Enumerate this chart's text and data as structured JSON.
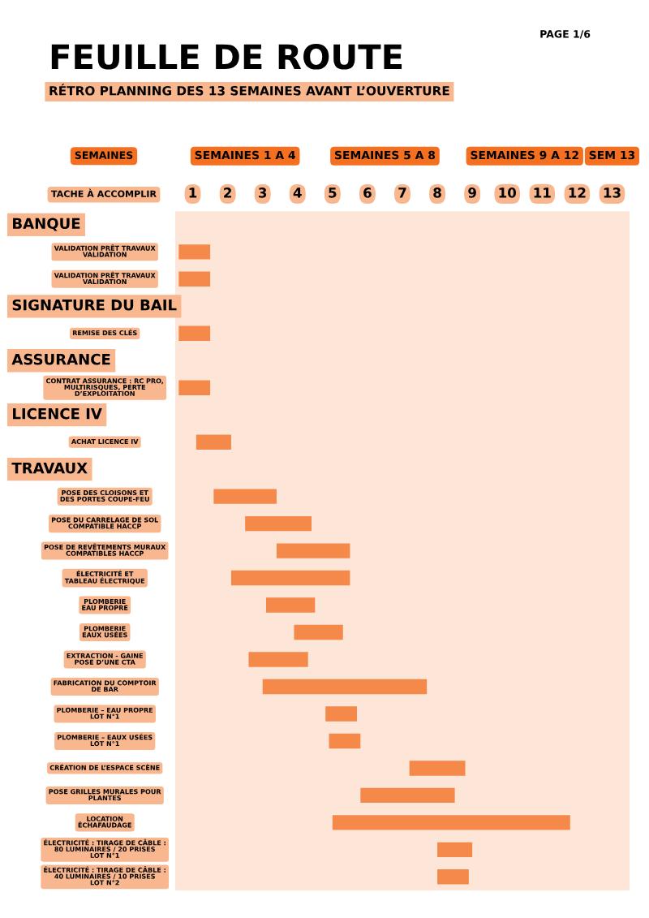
{
  "chart_data": {
    "type": "bar",
    "orientation": "horizontal",
    "title": "FEUILLE DE ROUTE",
    "subtitle": "RÉTRO PLANNING DES 13 SEMAINES AVANT L’OUVERTURE",
    "xlabel": "TACHE À ACCOMPLIR",
    "x2label": "SEMAINES",
    "annotations": [
      "PAGE 1/6",
      "SEMAINES 1 A 4",
      "SEMAINES 5 A 8",
      "SEMAINES 9 A 12",
      "SEM 13",
      "BANQUE",
      "SIGNATURE DU BAIL",
      "ASSURANCE",
      "LICENCE IV",
      "TRAVAUX"
    ],
    "categories": [
      null,
      "VALIDATION PRÊT TRAVAUX\nVALIDATION",
      "VALIDATION PRÊT TRAVAUX\nVALIDATION",
      null,
      "REMISE DES CLÉS",
      null,
      "CONTRAT ASSURANCE : RC PRO,\nMULTIRISQUES, PERTE\nD’EXPLOITATION",
      null,
      "ACHAT LICENCE IV",
      null,
      "POSE DES CLOISONS ET\nDES PORTES COUPE-FEU",
      "POSE DU CARRELAGE DE SOL\nCOMPATIBLE HACCP",
      "POSE DE REVÊTEMENTS MURAUX\nCOMPATIBLES HACCP",
      "ÉLECTRICITÉ ET\nTABLEAU ÉLECTRIQUE",
      "PLOMBERIE\nEAU PROPRE",
      "PLOMBERIE\nEAUX USÉES",
      "EXTRACTION - GAINE\nPOSE D’UNE CTA",
      "FABRICATION DU COMPTOIR\nDE BAR",
      "PLOMBERIE – EAU PROPRE\nLOT N°1",
      "PLOMBERIE – EAUX USÉES\nLOT N°1",
      "CRÉATION DE L’ESPACE SCÈNE",
      "POSE GRILLES MURALES POUR\nPLANTES",
      "LOCATION\nÉCHAFAUDAGE",
      "ÉLECTRICITÉ : TIRAGE DE CÂBLE :\n80 LUMINAIRES / 20 PRISES\nLOT N°1",
      "ÉLECTRICITÉ : TIRAGE DE CÂBLE :\n40 LUMINAIRES / 10 PRISES\nLOT N°2"
    ],
    "base": [
      null,
      0.6,
      0.6,
      null,
      0.6,
      null,
      0.6,
      null,
      1.1,
      null,
      1.6,
      2.5,
      3.4,
      2.1,
      3.1,
      3.9,
      2.6,
      3.0,
      4.8,
      4.9,
      7.2,
      5.8,
      5.0,
      8.0,
      8.0
    ],
    "values": [
      null,
      0.9,
      0.9,
      null,
      0.9,
      null,
      0.9,
      null,
      1.0,
      null,
      1.8,
      1.9,
      2.1,
      3.4,
      1.4,
      1.4,
      1.7,
      4.7,
      0.9,
      0.9,
      1.6,
      2.7,
      6.8,
      1.0,
      0.9
    ],
    "color": "#f5894a",
    "xlim": [
      0.5,
      13.5
    ],
    "xticks": [
      1,
      2,
      3,
      4,
      5,
      6,
      7,
      8,
      9,
      10,
      11,
      12,
      13
    ],
    "grid": false
  }
}
